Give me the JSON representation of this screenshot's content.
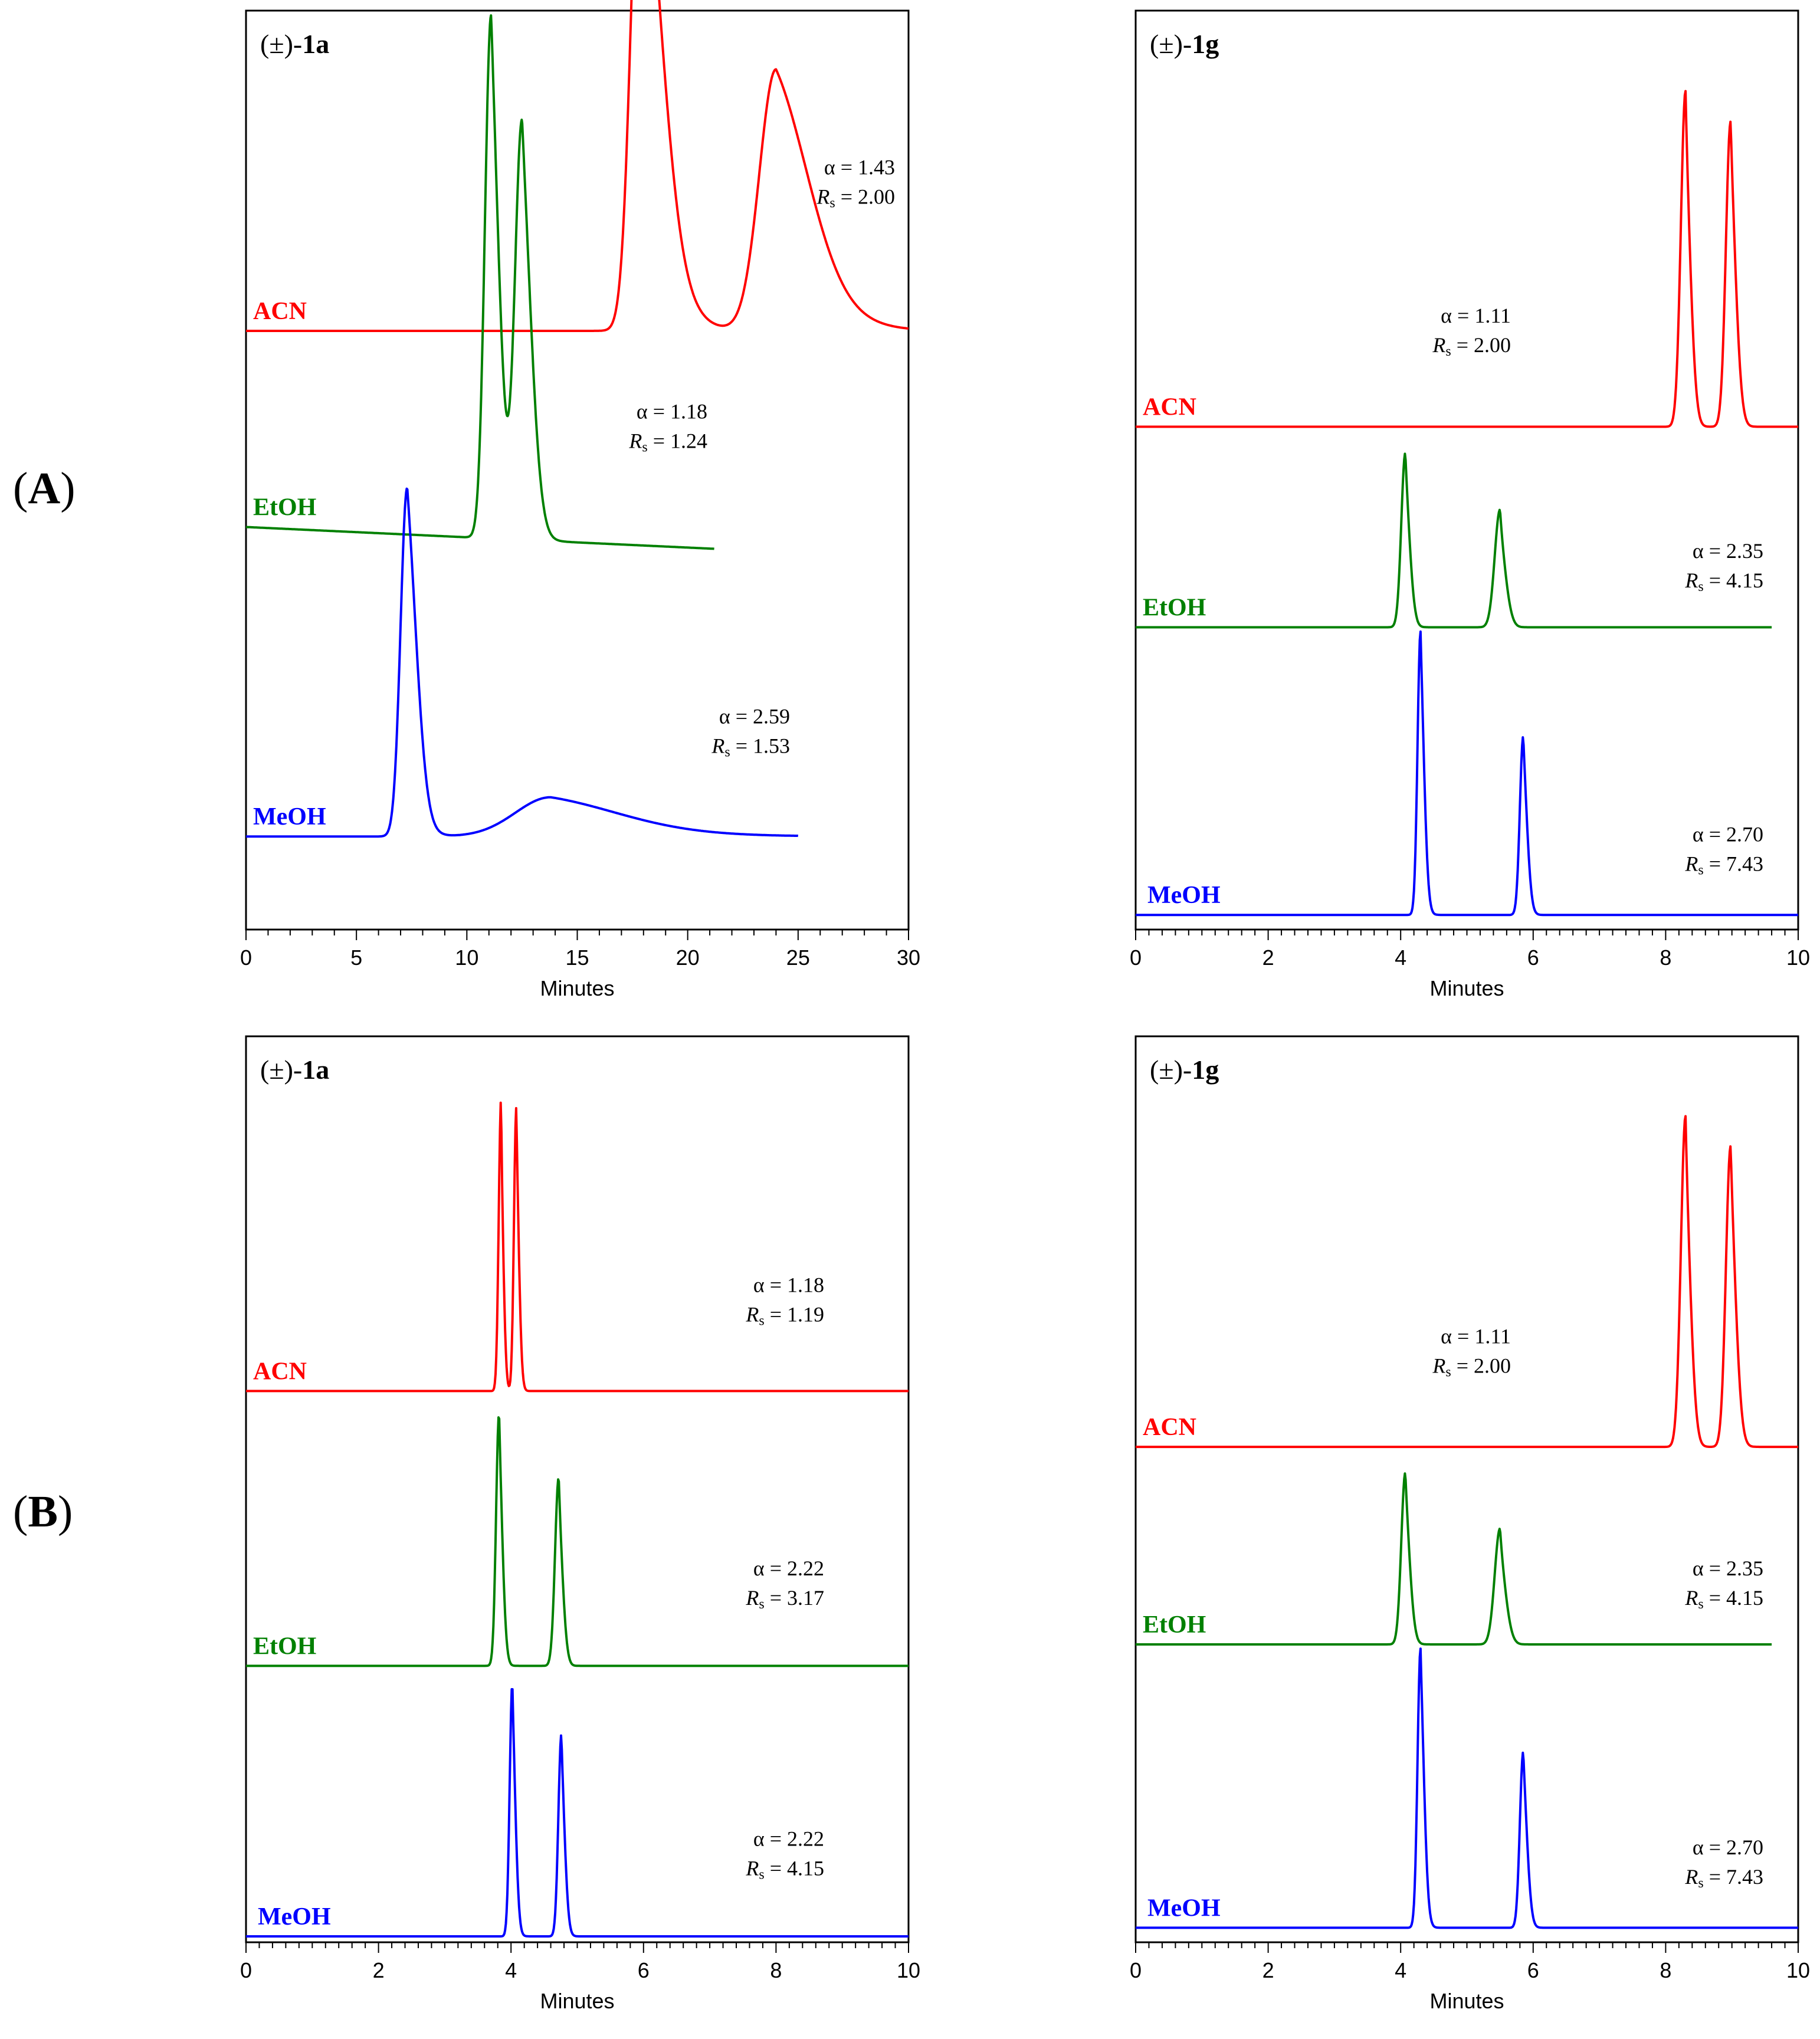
{
  "panel_labels": [
    "A",
    "B"
  ],
  "chart_data": [
    {
      "type": "line",
      "panel": "A",
      "title": "(±)-1a",
      "compound_prefix": "(±)-",
      "compound": "1a",
      "xlabel": "Minutes",
      "ylabel": "",
      "xlim": [
        0,
        30
      ],
      "xticks": [
        0,
        5,
        10,
        15,
        20,
        25,
        30
      ],
      "series": [
        {
          "name": "ACN",
          "color": "#ff0000",
          "baseline": 0.68,
          "end_time": 30,
          "drift": 0,
          "alpha_label": "α = 1.43",
          "rs_label": "Rs = 2.00",
          "rs_value": "= 2.00",
          "peaks": [
            {
              "time": 17.9,
              "height": 0.62,
              "width": 0.45,
              "tail": 1.4
            },
            {
              "time": 24.0,
              "height": 0.3,
              "width": 0.75,
              "tail": 2.4
            }
          ]
        },
        {
          "name": "EtOH",
          "color": "#008000",
          "baseline": 0.455,
          "end_time": 21.2,
          "drift": -0.025,
          "alpha_label": "α = 1.18",
          "rs_label": "Rs = 1.24",
          "rs_value": "= 1.24",
          "peaks": [
            {
              "time": 11.1,
              "height": 0.6,
              "width": 0.28,
              "tail": 0.35
            },
            {
              "time": 12.5,
              "height": 0.48,
              "width": 0.32,
              "tail": 0.4
            }
          ]
        },
        {
          "name": "MeOH",
          "color": "#0000ff",
          "baseline": 0.1,
          "end_time": 25.0,
          "drift": 0,
          "alpha_label": "α = 2.59",
          "rs_label": "Rs = 1.53",
          "rs_value": "= 1.53",
          "peaks": [
            {
              "time": 7.3,
              "height": 0.4,
              "width": 0.3,
              "tail": 0.5
            },
            {
              "time": 13.8,
              "height": 0.045,
              "width": 1.6,
              "tail": 5.0
            }
          ]
        }
      ]
    },
    {
      "type": "line",
      "panel": "A",
      "title": "(±)-1g",
      "compound_prefix": "(±)-",
      "compound": "1g",
      "xlabel": "Minutes",
      "ylabel": "",
      "xlim": [
        0,
        10
      ],
      "xticks": [
        0,
        2,
        4,
        6,
        8,
        10
      ],
      "series": [
        {
          "name": "ACN",
          "color": "#ff0000",
          "baseline": 0.57,
          "end_time": 10,
          "drift": 0,
          "alpha_label": "α = 1.11",
          "rs_label": "Rs = 2.00",
          "rs_value": "= 2.00",
          "peaks": [
            {
              "time": 8.3,
              "height": 0.385,
              "width": 0.07,
              "tail": 0.05
            },
            {
              "time": 8.98,
              "height": 0.35,
              "width": 0.07,
              "tail": 0.06
            }
          ]
        },
        {
          "name": "EtOH",
          "color": "#008000",
          "baseline": 0.34,
          "end_time": 9.6,
          "drift": 0,
          "alpha_label": "α = 2.35",
          "rs_label": "Rs = 4.15",
          "rs_value": "= 4.15",
          "peaks": [
            {
              "time": 4.07,
              "height": 0.2,
              "width": 0.06,
              "tail": 0.05
            },
            {
              "time": 5.5,
              "height": 0.135,
              "width": 0.08,
              "tail": 0.05
            }
          ]
        },
        {
          "name": "MeOH",
          "color": "#0000ff",
          "baseline": 0.01,
          "end_time": 10,
          "drift": 0,
          "alpha_label": "α = 2.70",
          "rs_label": "Rs = 7.43",
          "rs_value": "= 7.43",
          "peaks": [
            {
              "time": 4.3,
              "height": 0.325,
              "width": 0.045,
              "tail": 0.05
            },
            {
              "time": 5.85,
              "height": 0.205,
              "width": 0.05,
              "tail": 0.05
            }
          ]
        }
      ]
    },
    {
      "type": "line",
      "panel": "B",
      "title": "(±)-1a",
      "compound_prefix": "(±)-",
      "compound": "1a",
      "xlabel": "Minutes",
      "ylabel": "",
      "xlim": [
        0,
        10
      ],
      "xticks": [
        0,
        2,
        4,
        6,
        8,
        10
      ],
      "series": [
        {
          "name": "ACN",
          "color": "#ff0000",
          "baseline": 0.635,
          "end_time": 10,
          "drift": 0,
          "alpha_label": "α = 1.18",
          "rs_label": "Rs = 1.19",
          "rs_value": "= 1.19",
          "peaks": [
            {
              "time": 3.85,
              "height": 0.34,
              "width": 0.035,
              "tail": 0.02
            },
            {
              "time": 4.08,
              "height": 0.33,
              "width": 0.035,
              "tail": 0.03
            }
          ]
        },
        {
          "name": "EtOH",
          "color": "#008000",
          "baseline": 0.315,
          "end_time": 10,
          "drift": 0,
          "alpha_label": "α = 2.22",
          "rs_label": "Rs = 3.17",
          "rs_value": "= 3.17",
          "peaks": [
            {
              "time": 3.82,
              "height": 0.295,
              "width": 0.045,
              "tail": 0.04
            },
            {
              "time": 4.72,
              "height": 0.22,
              "width": 0.055,
              "tail": 0.04
            }
          ]
        },
        {
          "name": "MeOH",
          "color": "#0000ff",
          "baseline": 0.0,
          "end_time": 10,
          "drift": 0,
          "alpha_label": "α = 2.22",
          "rs_label": "Rs = 4.15",
          "rs_value": "= 4.15",
          "peaks": [
            {
              "time": 4.02,
              "height": 0.295,
              "width": 0.04,
              "tail": 0.04
            },
            {
              "time": 4.76,
              "height": 0.235,
              "width": 0.045,
              "tail": 0.04
            }
          ]
        }
      ]
    },
    {
      "type": "line",
      "panel": "B",
      "title": "(±)-1g",
      "compound_prefix": "(±)-",
      "compound": "1g",
      "xlabel": "Minutes",
      "ylabel": "",
      "xlim": [
        0,
        10
      ],
      "xticks": [
        0,
        2,
        4,
        6,
        8,
        10
      ],
      "series": [
        {
          "name": "ACN",
          "color": "#ff0000",
          "baseline": 0.57,
          "end_time": 10,
          "drift": 0,
          "alpha_label": "α = 1.11",
          "rs_label": "Rs = 2.00",
          "rs_value": "= 2.00",
          "peaks": [
            {
              "time": 8.3,
              "height": 0.385,
              "width": 0.07,
              "tail": 0.05
            },
            {
              "time": 8.98,
              "height": 0.35,
              "width": 0.07,
              "tail": 0.06
            }
          ]
        },
        {
          "name": "EtOH",
          "color": "#008000",
          "baseline": 0.34,
          "end_time": 9.6,
          "drift": 0,
          "alpha_label": "α = 2.35",
          "rs_label": "Rs = 4.15",
          "rs_value": "= 4.15",
          "peaks": [
            {
              "time": 4.07,
              "height": 0.2,
              "width": 0.06,
              "tail": 0.05
            },
            {
              "time": 5.5,
              "height": 0.135,
              "width": 0.08,
              "tail": 0.05
            }
          ]
        },
        {
          "name": "MeOH",
          "color": "#0000ff",
          "baseline": 0.01,
          "end_time": 10,
          "drift": 0,
          "alpha_label": "α = 2.70",
          "rs_label": "Rs = 7.43",
          "rs_value": "= 7.43",
          "peaks": [
            {
              "time": 4.3,
              "height": 0.325,
              "width": 0.045,
              "tail": 0.05
            },
            {
              "time": 5.85,
              "height": 0.205,
              "width": 0.05,
              "tail": 0.05
            }
          ]
        }
      ]
    }
  ]
}
